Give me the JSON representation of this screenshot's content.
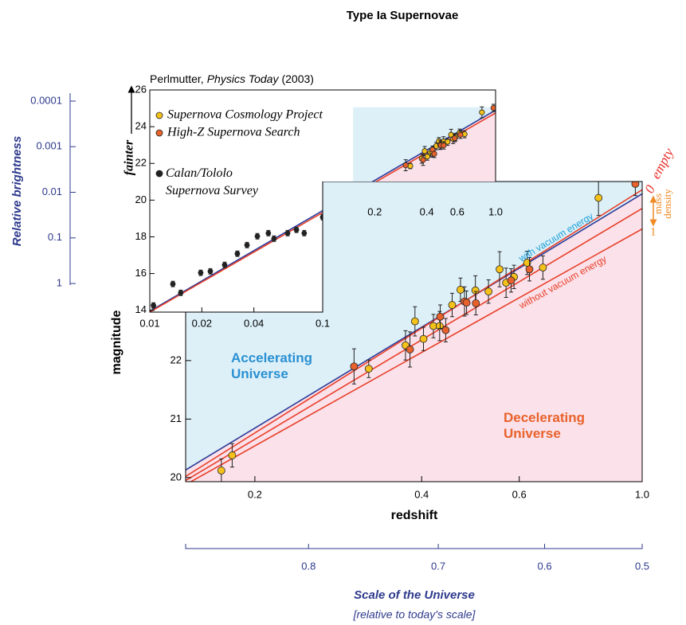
{
  "chart_data": {
    "type": "scatter",
    "title": "Type Ia Supernovae",
    "xlabel": "redshift",
    "ylabel": "magnitude",
    "xscale": "log",
    "xlim": [
      0.15,
      1.0
    ],
    "xticks": [
      0.2,
      0.4,
      0.6,
      {
        "value": 1,
        "label": "1.0"
      }
    ],
    "ylim": [
      19.93,
      25.06
    ],
    "yticks": [
      20,
      21,
      22
    ],
    "series": [
      {
        "name": "Supernova Cosmology Project",
        "color": "#f5c21b",
        "x": [
          0.174,
          0.182,
          0.321,
          0.374,
          0.389,
          0.403,
          0.42,
          0.431,
          0.454,
          0.47,
          0.5,
          0.528,
          0.553,
          0.568,
          0.587,
          0.62,
          0.662,
          0.834
        ],
        "values": [
          20.12,
          20.38,
          21.86,
          22.26,
          22.67,
          22.37,
          22.59,
          22.59,
          22.95,
          23.21,
          23.2,
          23.18,
          23.56,
          23.33,
          23.43,
          23.67,
          23.59,
          24.78
        ],
        "errors": [
          0.2,
          0.2,
          0.15,
          0.25,
          0.25,
          0.2,
          0.2,
          0.25,
          0.2,
          0.2,
          0.25,
          0.2,
          0.3,
          0.25,
          0.2,
          0.2,
          0.2,
          0.3
        ]
      },
      {
        "name": "High-Z Supernova Search",
        "color": "#e8622c",
        "x": [
          0.302,
          0.381,
          0.432,
          0.442,
          0.478,
          0.482,
          0.501,
          0.58,
          0.626,
          0.972
        ],
        "values": [
          21.9,
          22.19,
          22.75,
          22.52,
          23.01,
          22.99,
          22.98,
          23.37,
          23.56,
          25.02
        ],
        "errors": [
          0.3,
          0.3,
          0.2,
          0.2,
          0.25,
          0.2,
          0.2,
          0.2,
          0.2,
          0.2
        ]
      }
    ],
    "lines": [
      {
        "label": "with vacuum energy",
        "color": "#2b3b98",
        "x": [
          0.15,
          1.0
        ],
        "values": [
          20.13,
          24.85
        ]
      },
      {
        "color": "#e8402a",
        "x": [
          0.15,
          1.0
        ],
        "values": [
          20.02,
          24.92
        ]
      },
      {
        "color": "#e8402a",
        "x": [
          0.15,
          1.0
        ],
        "values": [
          19.95,
          24.6
        ]
      },
      {
        "label": "without vacuum energy",
        "color": "#e8402a",
        "x": [
          0.15,
          1.0
        ],
        "values": [
          19.88,
          24.25
        ]
      }
    ],
    "annotations": [
      "Accelerating Universe",
      "Decelerating Universe",
      "0",
      "empty",
      "mass density",
      "1"
    ],
    "inset": {
      "type": "scatter",
      "source": {
        "author": "Perlmutter,",
        "journal": "Physics Today",
        "year": "(2003)"
      },
      "ylabel": "fainter",
      "xscale": "log",
      "xlim": [
        0.01,
        1.0
      ],
      "xticks": [
        0.01,
        0.02,
        0.04,
        0.1
      ],
      "ylim": [
        13.9,
        26
      ],
      "yticks": [
        14,
        16,
        18,
        20,
        22,
        24,
        26
      ],
      "series": [
        {
          "name": "Calan/Tololo Supernova Survey",
          "color": "#222222",
          "x": [
            0.0105,
            0.0136,
            0.0151,
            0.0197,
            0.0224,
            0.0271,
            0.0321,
            0.0365,
            0.0419,
            0.0485,
            0.0523,
            0.0627,
            0.0705,
            0.0782,
            0.1
          ],
          "values": [
            14.26,
            15.43,
            14.95,
            16.04,
            16.12,
            16.47,
            17.08,
            17.55,
            18.03,
            18.2,
            17.9,
            18.2,
            18.38,
            18.2,
            19.07
          ],
          "errors": [
            0.15,
            0.15,
            0.15,
            0.15,
            0.15,
            0.15,
            0.15,
            0.15,
            0.15,
            0.15,
            0.15,
            0.15,
            0.15,
            0.15,
            0.15
          ]
        }
      ],
      "lines": [
        {
          "color": "#2b3b98",
          "x": [
            0.01,
            1.0
          ],
          "values": [
            13.95,
            24.9
          ]
        },
        {
          "color": "#e8402a",
          "x": [
            0.01,
            1.0
          ],
          "values": [
            13.9,
            24.75
          ]
        }
      ]
    },
    "brightness_axis": {
      "label": "Relative brightness",
      "scale": "log",
      "lim": [
        1.08,
        6.7e-05
      ],
      "ticks": [
        0.0001,
        0.001,
        0.01,
        0.1,
        1
      ]
    },
    "scale_axis": {
      "label": "Scale of the Universe",
      "sublabel": "[relative to today's scale]",
      "ticks": [
        0.8,
        0.7,
        0.6,
        0.5
      ]
    }
  }
}
